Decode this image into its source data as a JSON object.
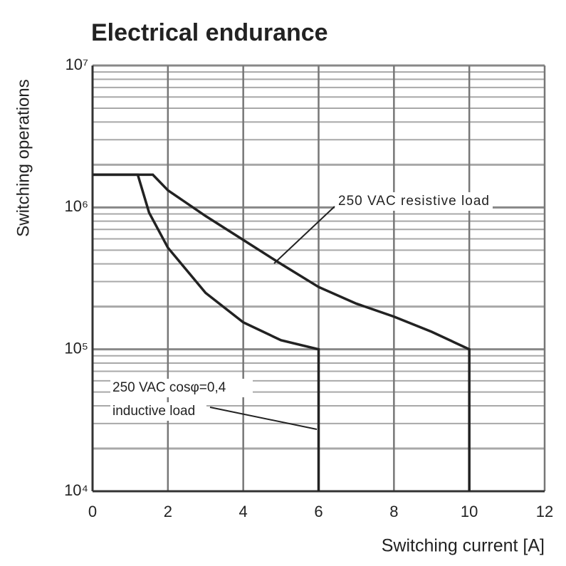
{
  "chart_data": {
    "type": "line",
    "title": "Electrical endurance",
    "x_label": "Switching current [A]",
    "y_label": "Switching operations",
    "xlim": [
      0,
      12
    ],
    "xticks": [
      0,
      2,
      4,
      6,
      8,
      10,
      12
    ],
    "ylim": [
      10000,
      10000000
    ],
    "y_scale": "log",
    "yticks": [
      {
        "value": 10000,
        "label": "10⁴"
      },
      {
        "value": 100000,
        "label": "10⁵"
      },
      {
        "value": 1000000,
        "label": "10⁶"
      },
      {
        "value": 10000000,
        "label": "10⁷"
      }
    ],
    "grid": true,
    "series": [
      {
        "name": "250 VAC resistive load",
        "color": "#222222",
        "x": [
          0,
          1.6,
          2,
          3,
          4,
          5,
          6,
          7,
          8,
          9,
          10,
          10
        ],
        "values": [
          1700000,
          1700000,
          1320000,
          870000,
          590000,
          400000,
          275000,
          210000,
          170000,
          133000,
          100000,
          10000
        ]
      },
      {
        "name": "250 VAC cosφ=0,4",
        "color": "#222222",
        "x": [
          0,
          1.2,
          1.5,
          2,
          3,
          4,
          5,
          6,
          6
        ],
        "values": [
          1700000,
          1700000,
          920000,
          520000,
          250000,
          155000,
          116000,
          100000,
          10000
        ]
      }
    ],
    "annotations": [
      "250 VAC resistive load",
      "250 VAC cosφ=0,4",
      "inductive load"
    ]
  }
}
